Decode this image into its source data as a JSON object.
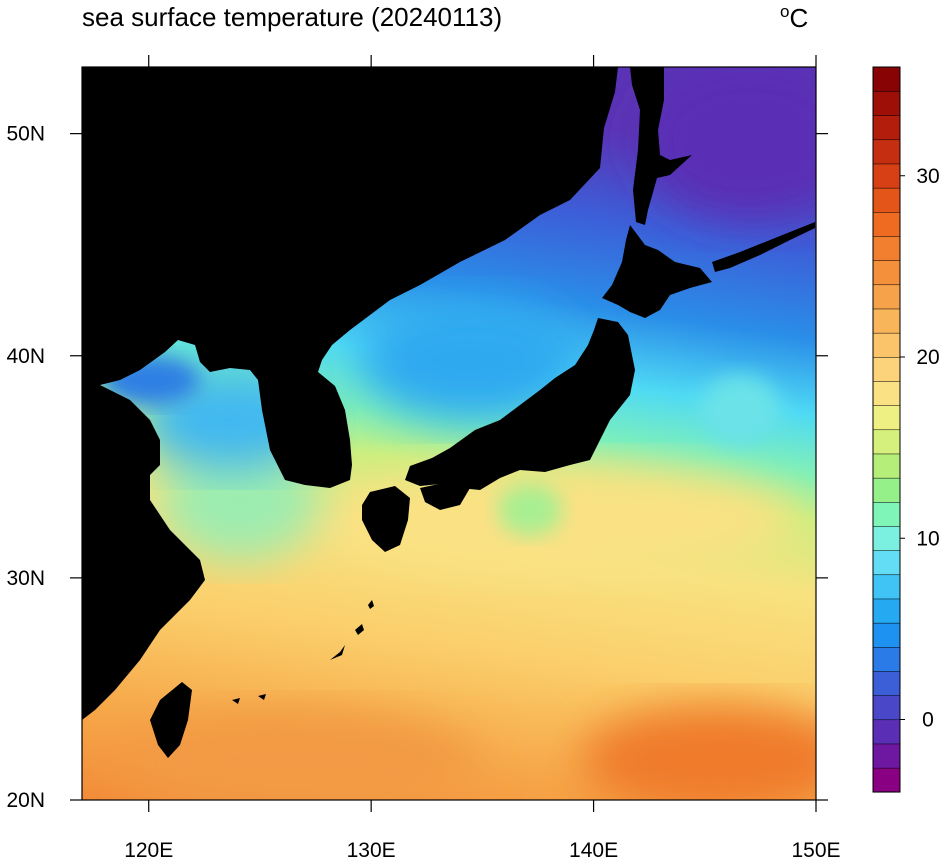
{
  "chart_data": {
    "type": "heatmap",
    "title": "sea surface temperature (20240113)",
    "units": {
      "degree_symbol": "o",
      "letter": "C"
    },
    "x_axis": {
      "range": [
        117,
        150
      ],
      "ticks": [
        {
          "value": 120,
          "label": "120E"
        },
        {
          "value": 130,
          "label": "130E"
        },
        {
          "value": 140,
          "label": "140E"
        },
        {
          "value": 150,
          "label": "150E"
        }
      ]
    },
    "y_axis": {
      "range": [
        20,
        53
      ],
      "ticks": [
        {
          "value": 20,
          "label": "20N"
        },
        {
          "value": 30,
          "label": "30N"
        },
        {
          "value": 40,
          "label": "40N"
        },
        {
          "value": 50,
          "label": "50N"
        }
      ]
    },
    "colorbar": {
      "range": [
        -4,
        36
      ],
      "ticks": [
        {
          "value": 0,
          "label": "0"
        },
        {
          "value": 10,
          "label": "10"
        },
        {
          "value": 20,
          "label": "20"
        },
        {
          "value": 30,
          "label": "30"
        }
      ],
      "colors": [
        "#8a0082",
        "#6e17a0",
        "#5a2fb5",
        "#4a48c8",
        "#3c5fd8",
        "#2a7ae8",
        "#1e92f0",
        "#25aaf2",
        "#3fc4f5",
        "#63dcf6",
        "#7cf0e0",
        "#7ff5b8",
        "#95f08a",
        "#b6ee7a",
        "#d6f07d",
        "#eef083",
        "#fae184",
        "#fcd37a",
        "#fbc46a",
        "#f8b55a",
        "#f6a24b",
        "#f4903c",
        "#f27e2f",
        "#ef6b22",
        "#e4551a",
        "#d64014",
        "#c52e10",
        "#b21d0c",
        "#9e0f08",
        "#880404"
      ]
    },
    "land_color": "#000000"
  }
}
